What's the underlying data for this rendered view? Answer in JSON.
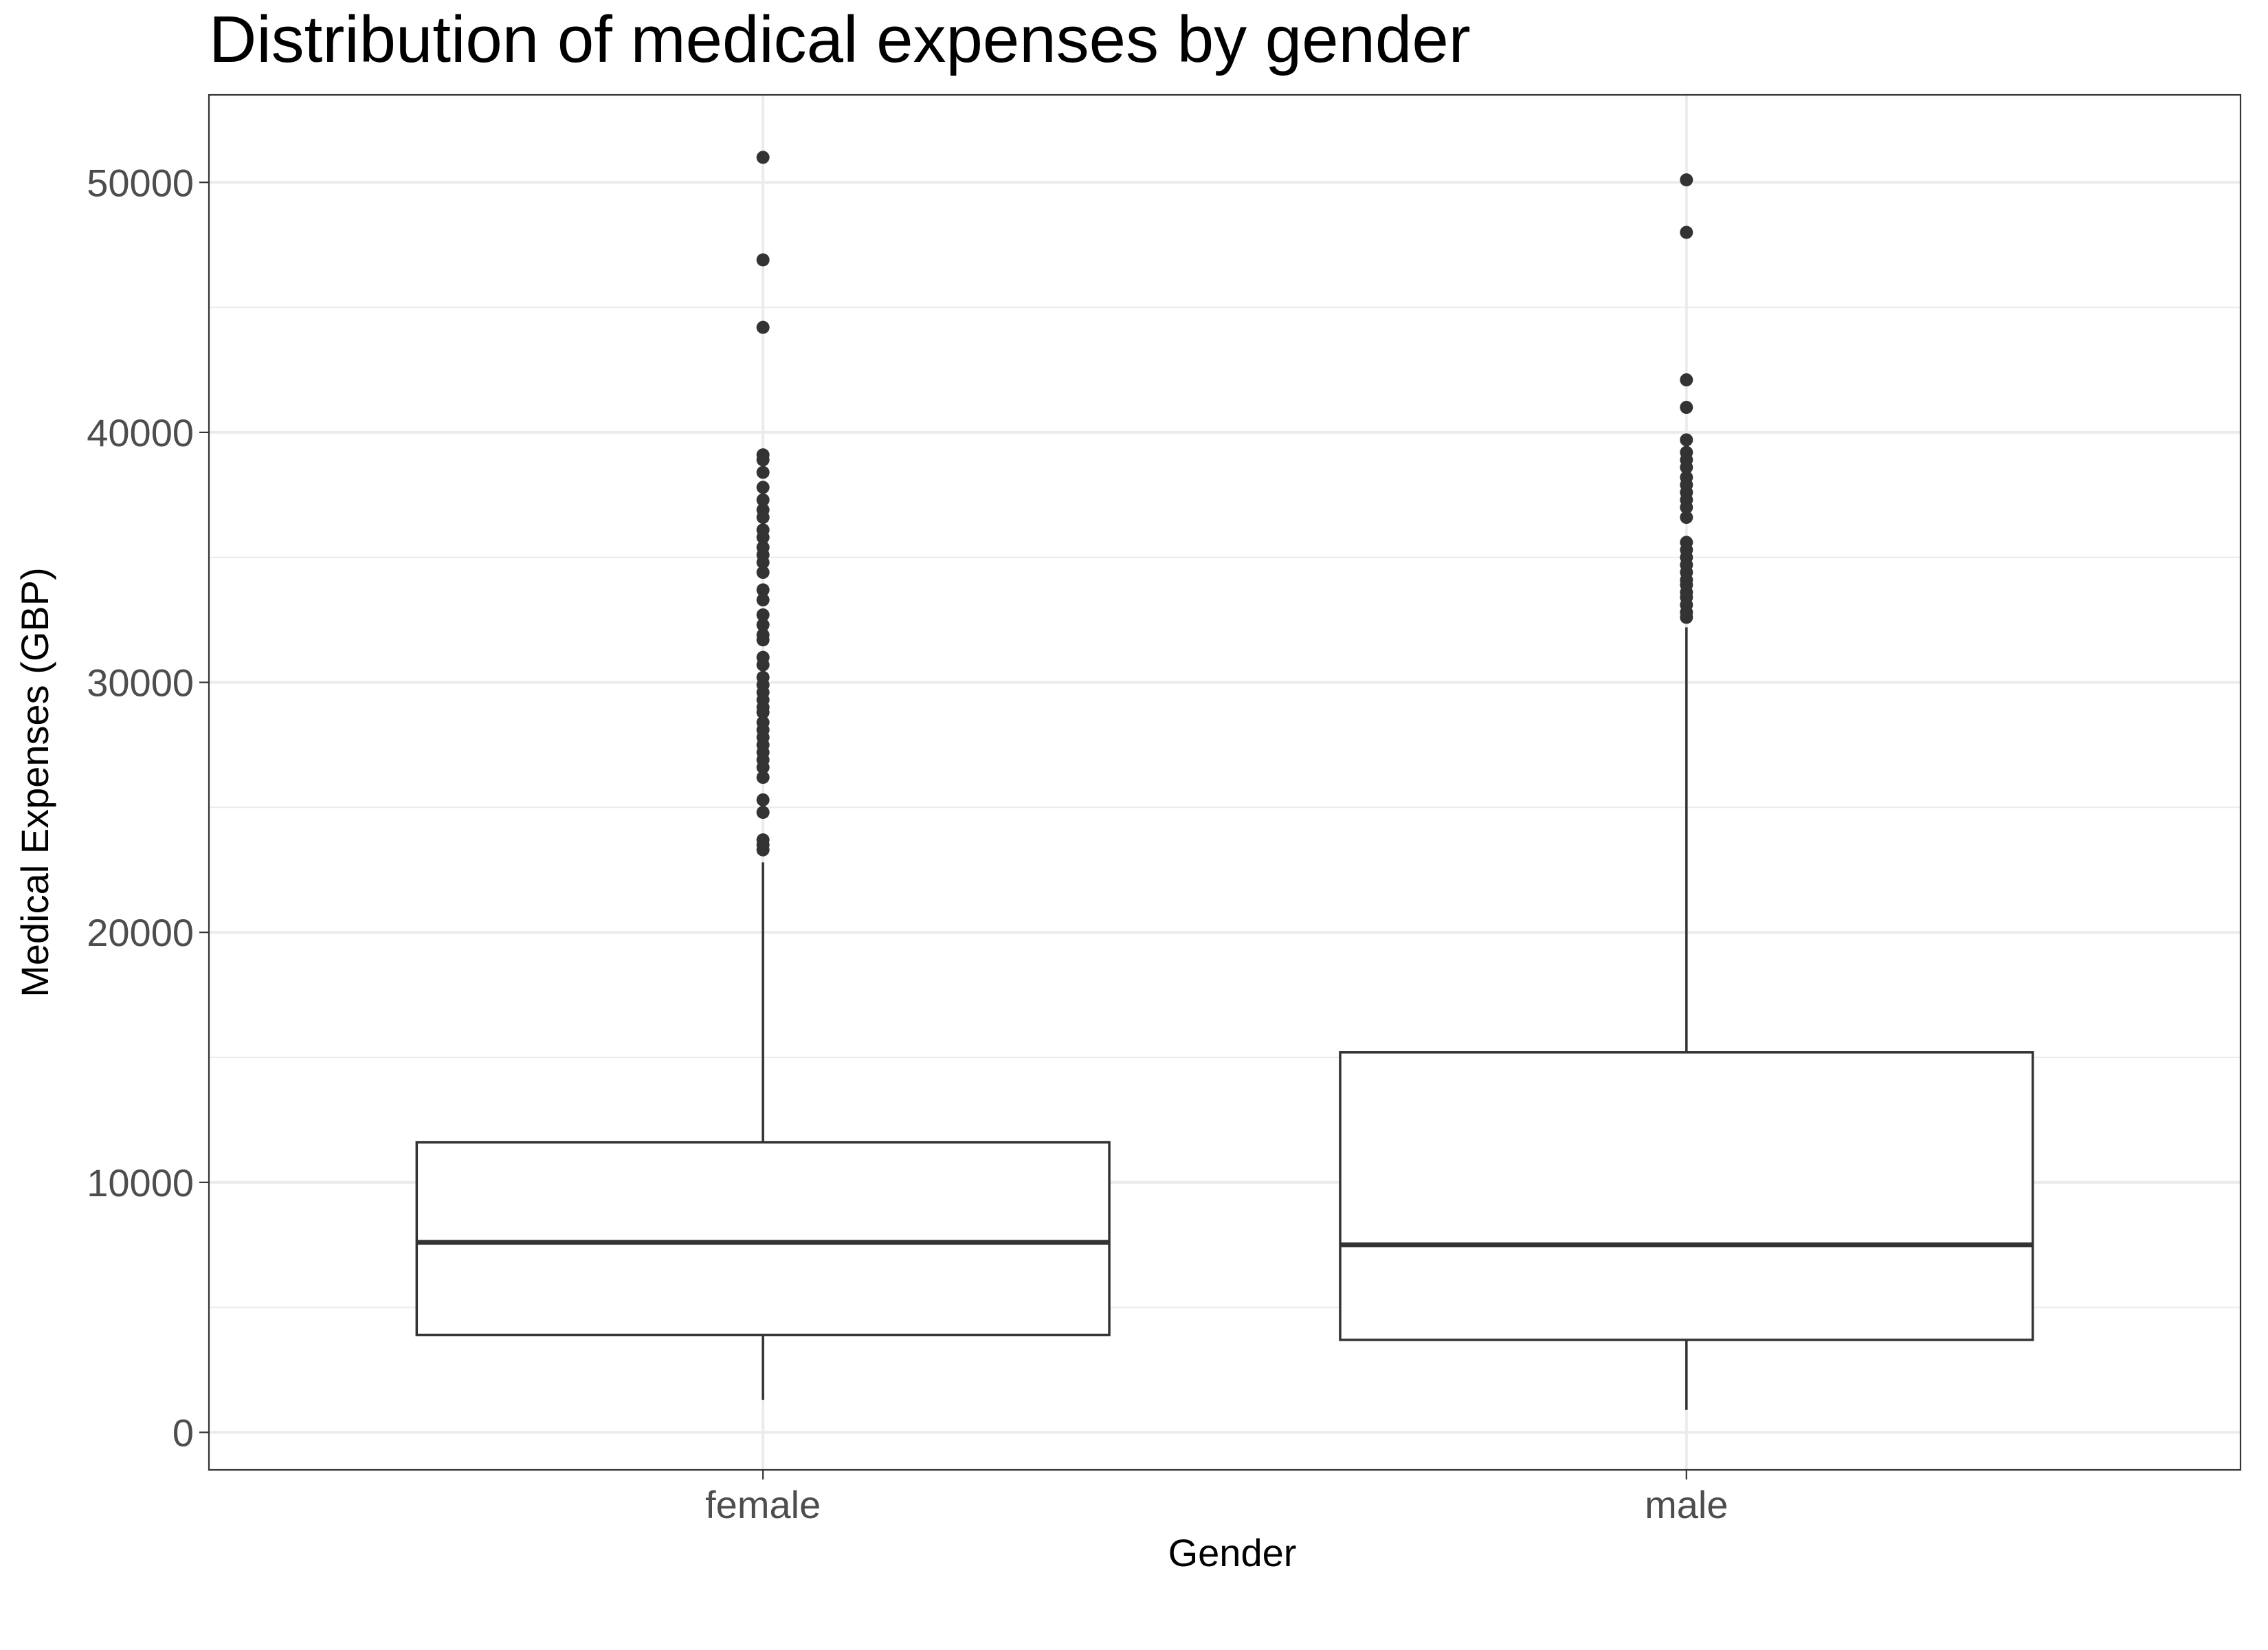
{
  "chart_data": {
    "type": "boxplot",
    "title": "Distribution of medical expenses by gender",
    "xlabel": "Gender",
    "ylabel": "Medical Expenses (GBP)",
    "categories": [
      "female",
      "male"
    ],
    "ylim": [
      -1500,
      53500
    ],
    "yticks": [
      0,
      10000,
      20000,
      30000,
      40000,
      50000
    ],
    "grid": true,
    "colors": {
      "box_line": "#333333",
      "outlier": "#333333",
      "grid": "#ebebeb",
      "panel_border": "#333333",
      "background": "#ffffff"
    },
    "boxes": [
      {
        "category": "female",
        "whisker_low": 1300,
        "q1": 3900,
        "median": 7600,
        "q3": 11600,
        "whisker_high": 22800,
        "outliers": [
          51000,
          46900,
          44200,
          39100,
          38900,
          38400,
          37800,
          37300,
          36900,
          36600,
          36100,
          35800,
          35400,
          35100,
          34800,
          34400,
          33700,
          33300,
          32700,
          32300,
          31900,
          31700,
          31000,
          30700,
          30200,
          29900,
          29600,
          29300,
          29000,
          28800,
          28400,
          28100,
          27800,
          27500,
          27200,
          26900,
          26600,
          26200,
          25300,
          24800,
          23700,
          23500,
          23300
        ]
      },
      {
        "category": "male",
        "whisker_low": 900,
        "q1": 3700,
        "median": 7500,
        "q3": 15200,
        "whisker_high": 32200,
        "outliers": [
          50100,
          48000,
          42100,
          41000,
          39700,
          39200,
          38900,
          38600,
          38200,
          37900,
          37600,
          37300,
          37000,
          36600,
          35600,
          35300,
          35000,
          34700,
          34400,
          34100,
          33900,
          33600,
          33400,
          33100,
          32800,
          32600
        ]
      }
    ]
  }
}
